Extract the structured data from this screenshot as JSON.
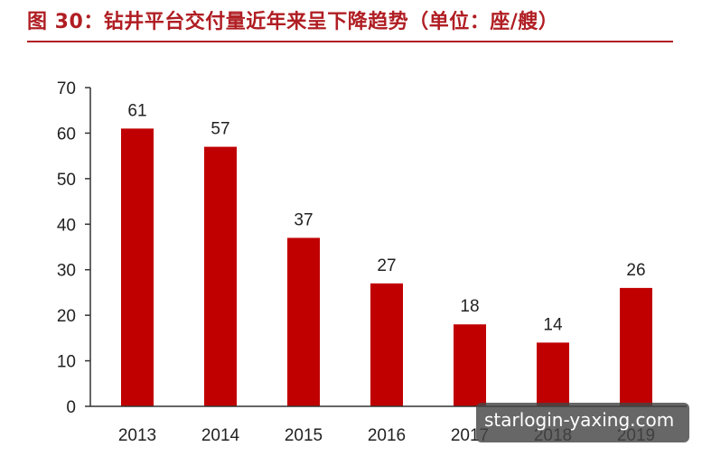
{
  "header": {
    "title": "图 30：钻井平台交付量近年来呈下降趋势（单位：座/艘）"
  },
  "watermark": {
    "text": "starlogin-yaxing.com"
  },
  "colors": {
    "bar": "#c00000",
    "title": "#b01e23",
    "axis": "#333333"
  },
  "chart_data": {
    "type": "bar",
    "categories": [
      "2013",
      "2014",
      "2015",
      "2016",
      "2017",
      "2018",
      "2019"
    ],
    "values": [
      61,
      57,
      37,
      27,
      18,
      14,
      26
    ],
    "data_labels": [
      "61",
      "57",
      "37",
      "27",
      "18",
      "14",
      "26"
    ],
    "y_ticks": [
      "0",
      "10",
      "20",
      "30",
      "40",
      "50",
      "60",
      "70"
    ],
    "ylim": [
      0,
      70
    ],
    "grid": false,
    "legend": "none"
  }
}
